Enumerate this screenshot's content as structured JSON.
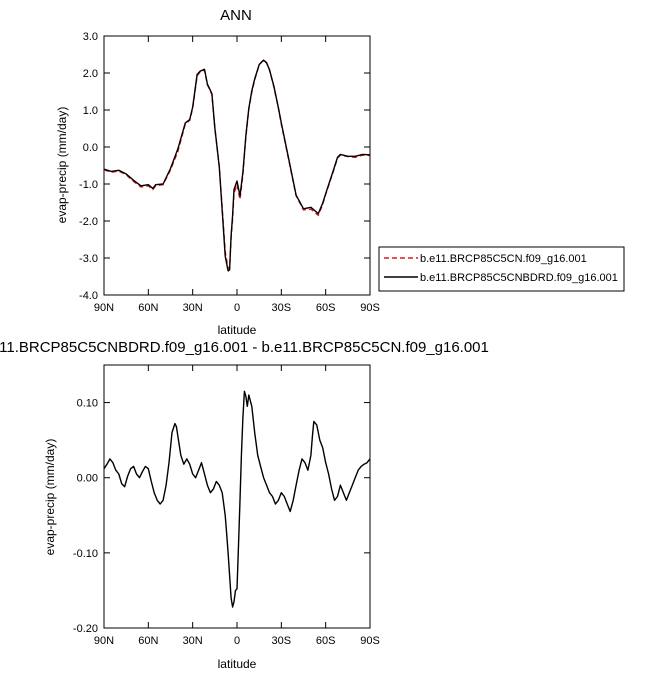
{
  "chart_data": [
    {
      "type": "line",
      "title": "ANN",
      "xlabel": "latitude",
      "ylabel": "evap-precip (mm/day)",
      "xlim": [
        90,
        -90
      ],
      "ylim": [
        -4.0,
        3.0
      ],
      "x_ticks": [
        90,
        60,
        30,
        0,
        -30,
        -60,
        -90
      ],
      "x_tick_labels": [
        "90N",
        "60N",
        "30N",
        "0",
        "30S",
        "60S",
        "90S"
      ],
      "y_ticks": [
        -4,
        -3,
        -2,
        -1,
        0,
        1,
        2,
        3
      ],
      "y_tick_labels": [
        "-4.0",
        "-3.0",
        "-2.0",
        "-1.0",
        "0.0",
        "1.0",
        "2.0",
        "3.0"
      ],
      "legend_placement": "right",
      "x": [
        90,
        85,
        80,
        75,
        70,
        65,
        60,
        57,
        55,
        50,
        45,
        40,
        35,
        32,
        30,
        27,
        25,
        22,
        20,
        17,
        15,
        12,
        10,
        8,
        6,
        5,
        4,
        3,
        2,
        0,
        -2,
        -4,
        -6,
        -8,
        -10,
        -12,
        -15,
        -18,
        -20,
        -22,
        -25,
        -28,
        -30,
        -35,
        -40,
        -45,
        -50,
        -55,
        -58,
        -60,
        -65,
        -68,
        -70,
        -75,
        -80,
        -85,
        -90
      ],
      "series": [
        {
          "name": "b.e11.BRCP85C5CN.f09_g16.001",
          "color": "#e8151b",
          "dash": "dashed",
          "values": [
            -0.62,
            -0.68,
            -0.65,
            -0.75,
            -0.93,
            -1.08,
            -1.05,
            -1.15,
            -1.05,
            -1.02,
            -0.62,
            -0.12,
            0.62,
            0.72,
            1.05,
            1.92,
            2.03,
            2.08,
            1.68,
            1.42,
            0.52,
            -0.52,
            -1.65,
            -2.82,
            -3.28,
            -3.27,
            -2.45,
            -1.95,
            -1.25,
            -1.02,
            -1.42,
            -0.75,
            0.28,
            1.02,
            1.48,
            1.82,
            2.22,
            2.36,
            2.28,
            2.08,
            1.62,
            1.05,
            0.62,
            -0.35,
            -1.32,
            -1.7,
            -1.68,
            -1.85,
            -1.55,
            -1.28,
            -0.68,
            -0.3,
            -0.22,
            -0.26,
            -0.28,
            -0.22,
            -0.23
          ]
        },
        {
          "name": "b.e11.BRCP85C5CNBDRD.f09_g16.001",
          "color": "#000000",
          "dash": "solid",
          "values": [
            -0.6,
            -0.66,
            -0.63,
            -0.73,
            -0.9,
            -1.05,
            -1.02,
            -1.12,
            -1.02,
            -1.0,
            -0.58,
            -0.05,
            0.65,
            0.74,
            1.08,
            1.96,
            2.05,
            2.1,
            1.7,
            1.44,
            0.53,
            -0.55,
            -1.72,
            -2.95,
            -3.35,
            -3.32,
            -2.4,
            -1.85,
            -1.15,
            -0.92,
            -1.32,
            -0.68,
            0.32,
            1.04,
            1.52,
            1.84,
            2.23,
            2.35,
            2.27,
            2.09,
            1.64,
            1.06,
            0.65,
            -0.32,
            -1.3,
            -1.67,
            -1.63,
            -1.8,
            -1.52,
            -1.26,
            -0.65,
            -0.28,
            -0.2,
            -0.25,
            -0.25,
            -0.2,
            -0.21
          ]
        }
      ]
    },
    {
      "type": "line",
      "title": "11.BRCP85C5CNBDRD.f09_g16.001 - b.e11.BRCP85C5CN.f09_g16.001",
      "xlabel": "latitude",
      "ylabel": "evap-precip (mm/day)",
      "xlim": [
        90,
        -90
      ],
      "ylim": [
        -0.2,
        0.15
      ],
      "x_ticks": [
        90,
        60,
        30,
        0,
        -30,
        -60,
        -90
      ],
      "x_tick_labels": [
        "90N",
        "60N",
        "30N",
        "0",
        "30S",
        "60S",
        "90S"
      ],
      "y_ticks": [
        -0.2,
        -0.1,
        0.0,
        0.1
      ],
      "y_tick_labels": [
        "-0.20",
        "-0.10",
        "0.00",
        "0.10"
      ],
      "x": [
        90,
        88,
        86,
        84,
        82,
        80,
        78,
        76,
        74,
        72,
        70,
        68,
        66,
        64,
        62,
        60,
        58,
        56,
        54,
        52,
        50,
        48,
        46,
        44,
        42,
        41,
        40,
        38,
        36,
        34,
        32,
        30,
        28,
        26,
        24,
        22,
        20,
        18,
        16,
        14,
        12,
        10,
        9,
        8,
        7,
        6,
        5,
        4,
        3,
        2,
        1,
        0,
        -1,
        -2,
        -3,
        -4,
        -5,
        -6,
        -7,
        -8,
        -10,
        -12,
        -14,
        -16,
        -18,
        -20,
        -22,
        -24,
        -26,
        -28,
        -30,
        -32,
        -34,
        -36,
        -38,
        -40,
        -42,
        -44,
        -46,
        -48,
        -50,
        -51,
        -52,
        -54,
        -56,
        -58,
        -60,
        -62,
        -64,
        -66,
        -68,
        -70,
        -72,
        -74,
        -76,
        -78,
        -80,
        -82,
        -84,
        -86,
        -88,
        -90
      ],
      "series": [
        {
          "name": "",
          "color": "#000000",
          "dash": "solid",
          "values": [
            0.012,
            0.018,
            0.025,
            0.02,
            0.01,
            0.005,
            -0.008,
            -0.012,
            0.002,
            0.012,
            0.015,
            0.005,
            0.0,
            0.008,
            0.015,
            0.012,
            -0.005,
            -0.02,
            -0.03,
            -0.035,
            -0.03,
            -0.01,
            0.02,
            0.06,
            0.072,
            0.068,
            0.055,
            0.03,
            0.018,
            0.025,
            0.018,
            0.005,
            0.0,
            0.01,
            0.02,
            0.005,
            -0.01,
            -0.02,
            -0.015,
            -0.005,
            -0.01,
            -0.02,
            -0.035,
            -0.05,
            -0.075,
            -0.1,
            -0.13,
            -0.16,
            -0.172,
            -0.165,
            -0.15,
            -0.148,
            -0.09,
            -0.03,
            0.03,
            0.08,
            0.115,
            0.108,
            0.095,
            0.11,
            0.095,
            0.06,
            0.03,
            0.015,
            0.0,
            -0.01,
            -0.02,
            -0.025,
            -0.035,
            -0.03,
            -0.02,
            -0.025,
            -0.035,
            -0.045,
            -0.03,
            -0.01,
            0.01,
            0.025,
            0.02,
            0.01,
            0.03,
            0.055,
            0.075,
            0.07,
            0.05,
            0.04,
            0.02,
            0.005,
            -0.015,
            -0.03,
            -0.025,
            -0.01,
            -0.02,
            -0.03,
            -0.02,
            -0.01,
            0.0,
            0.01,
            0.015,
            0.018,
            0.02,
            0.025
          ]
        }
      ]
    }
  ]
}
